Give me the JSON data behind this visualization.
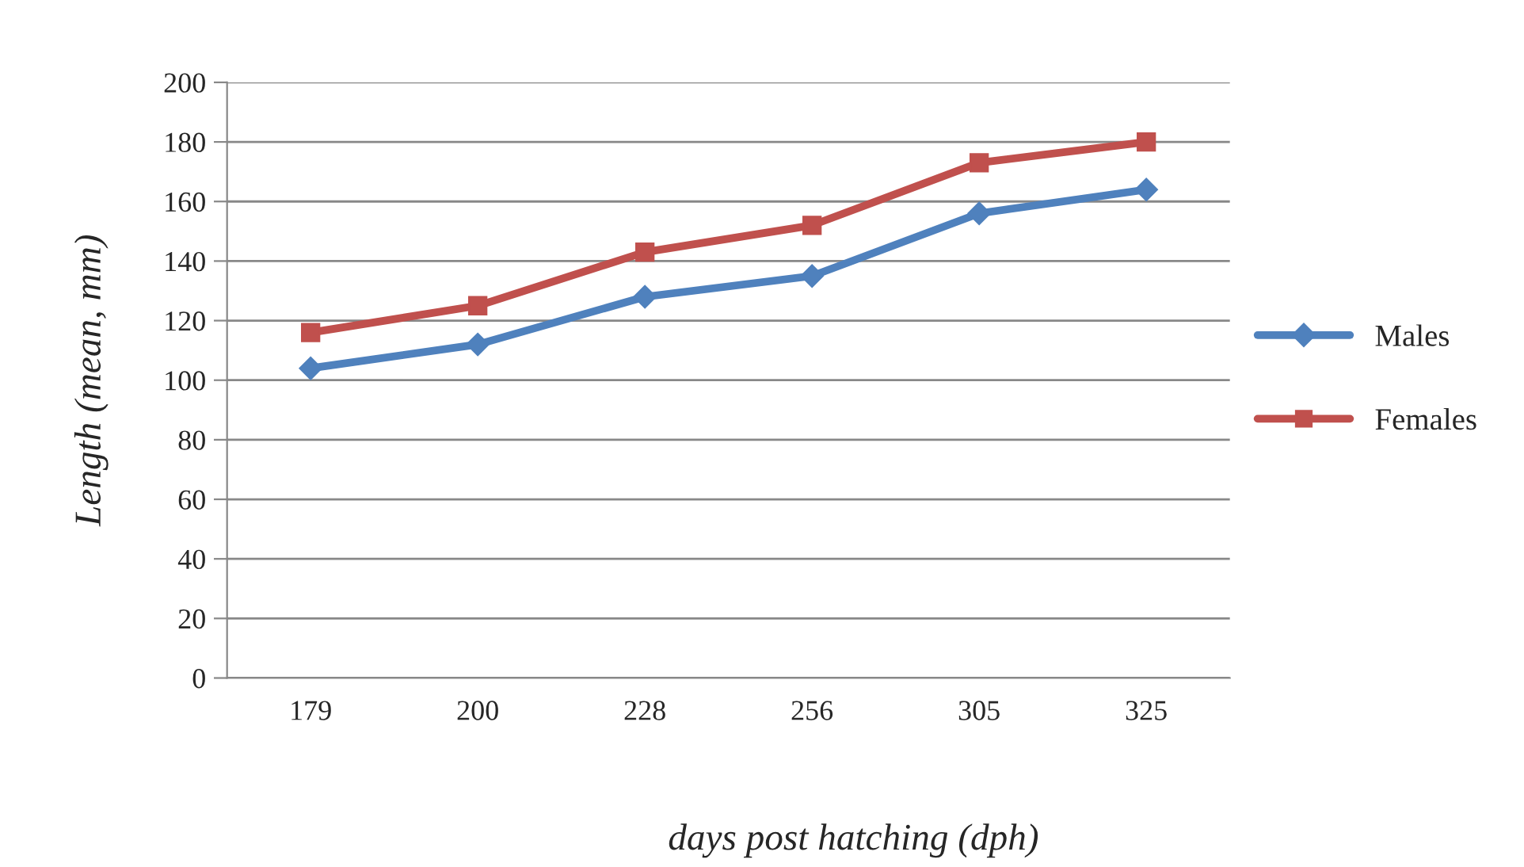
{
  "chart_data": {
    "type": "line",
    "xlabel": "days post hatching (dph)",
    "ylabel": "Length (mean, mm)",
    "categories": [
      "179",
      "200",
      "228",
      "256",
      "305",
      "325"
    ],
    "series": [
      {
        "name": "Males",
        "color": "#4f81bd",
        "marker": "diamond",
        "values": [
          104,
          112,
          128,
          135,
          156,
          164
        ]
      },
      {
        "name": "Females",
        "color": "#c0504d",
        "marker": "square",
        "values": [
          116,
          125,
          143,
          152,
          173,
          180
        ]
      }
    ],
    "ylim": [
      0,
      200
    ],
    "yticks": [
      0,
      20,
      40,
      60,
      80,
      100,
      120,
      140,
      160,
      180,
      200
    ],
    "grid": "y",
    "legend": "right"
  }
}
